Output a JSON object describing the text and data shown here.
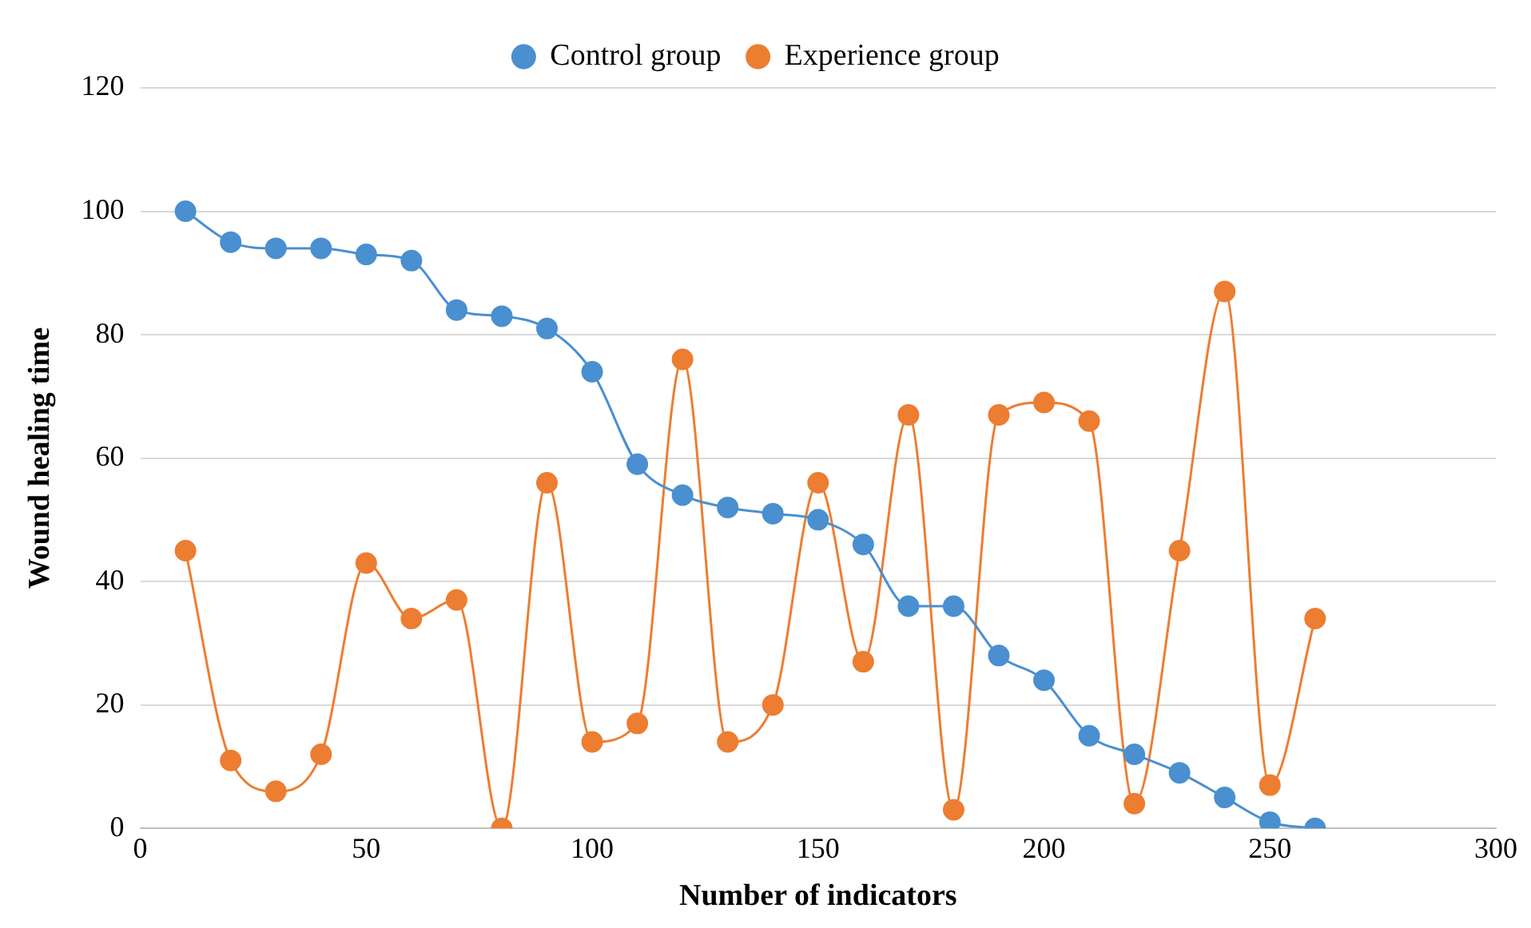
{
  "chart_data": {
    "type": "line",
    "xlabel": "Number of indicators",
    "ylabel": "Wound healing time",
    "x": [
      10,
      20,
      30,
      40,
      50,
      60,
      70,
      80,
      90,
      100,
      110,
      120,
      130,
      140,
      150,
      160,
      170,
      180,
      190,
      200,
      210,
      220,
      230,
      240,
      250,
      260
    ],
    "series": [
      {
        "name": "Control group",
        "color": "#4a8fd0",
        "values": [
          100,
          95,
          94,
          94,
          93,
          92,
          84,
          83,
          81,
          74,
          59,
          54,
          52,
          51,
          50,
          46,
          36,
          36,
          28,
          24,
          15,
          12,
          9,
          5,
          1,
          0
        ]
      },
      {
        "name": "Experience group",
        "color": "#ed7d31",
        "values": [
          45,
          11,
          6,
          12,
          43,
          34,
          37,
          0,
          56,
          14,
          17,
          76,
          14,
          20,
          56,
          27,
          67,
          3,
          67,
          69,
          66,
          4,
          45,
          87,
          7,
          34
        ]
      }
    ],
    "xlim": [
      0,
      300
    ],
    "xticks": [
      0,
      50,
      100,
      150,
      200,
      250,
      300
    ],
    "ylim": [
      0,
      120
    ],
    "yticks": [
      0,
      20,
      40,
      60,
      80,
      100,
      120
    ],
    "grid": "y",
    "legend": "top",
    "marker": "circle",
    "line_style": "solid"
  }
}
